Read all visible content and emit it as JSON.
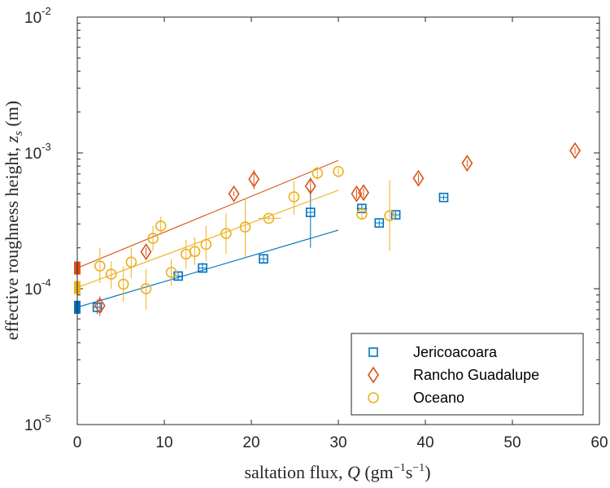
{
  "chart_data": {
    "type": "scatter",
    "title": "",
    "xlabel": {
      "prefix": "saltation flux, ",
      "var": "Q",
      "units_open": " (gm",
      "exp1": "−1",
      "units_mid": "s",
      "exp2": "−1",
      "units_close": ")"
    },
    "ylabel": {
      "prefix": "effective roughness height, ",
      "var": "z",
      "sub": "s",
      "suffix": " (m)"
    },
    "x_scale": "linear",
    "y_scale": "log",
    "xlim": [
      0,
      60
    ],
    "ylim": [
      1e-05,
      0.01
    ],
    "x_ticks": [
      0,
      10,
      20,
      30,
      40,
      50,
      60
    ],
    "x_tick_labels": [
      "0",
      "10",
      "20",
      "30",
      "40",
      "50",
      "60"
    ],
    "y_ticks": [
      {
        "value": 1e-05,
        "base": "10",
        "exp": "-5"
      },
      {
        "value": 0.0001,
        "base": "10",
        "exp": "-4"
      },
      {
        "value": 0.001,
        "base": "10",
        "exp": "-3"
      },
      {
        "value": 0.01,
        "base": "10",
        "exp": "-2"
      }
    ],
    "grid": false,
    "legend_position": "bottom-right",
    "series": [
      {
        "name": "Jericoacoara",
        "marker": "square",
        "color": "#0072BD",
        "intercept": 7.3e-05,
        "fit_x": [
          0,
          30
        ],
        "fit_y": [
          7.3e-05,
          0.00027
        ],
        "points": [
          {
            "x": 2.3,
            "y": 7.3e-05,
            "ylo": 6.5e-05,
            "yhi": 8.3e-05,
            "xlo": 1.8,
            "xhi": 2.8
          },
          {
            "x": 11.6,
            "y": 0.000124,
            "ylo": 0.000117,
            "yhi": 0.000131,
            "xlo": 11.1,
            "xhi": 12.1
          },
          {
            "x": 14.4,
            "y": 0.000142,
            "ylo": 0.000132,
            "yhi": 0.000155,
            "xlo": 13.9,
            "xhi": 14.9
          },
          {
            "x": 21.4,
            "y": 0.000166,
            "ylo": 0.000155,
            "yhi": 0.000178,
            "xlo": 20.9,
            "xhi": 21.9
          },
          {
            "x": 26.8,
            "y": 0.000365,
            "ylo": 0.0002,
            "yhi": 0.00055,
            "xlo": 26.3,
            "xhi": 27.3
          },
          {
            "x": 32.7,
            "y": 0.00039,
            "ylo": 0.00036,
            "yhi": 0.00042,
            "xlo": 32.1,
            "xhi": 33.3
          },
          {
            "x": 34.7,
            "y": 0.000305,
            "ylo": 0.00029,
            "yhi": 0.00032,
            "xlo": 34.2,
            "xhi": 35.2
          },
          {
            "x": 36.6,
            "y": 0.00035,
            "ylo": 0.00033,
            "yhi": 0.00037,
            "xlo": 36.1,
            "xhi": 37.1
          },
          {
            "x": 42.1,
            "y": 0.00047,
            "ylo": 0.00045,
            "yhi": 0.00049,
            "xlo": 41.6,
            "xhi": 42.6
          }
        ]
      },
      {
        "name": "Rancho Guadalupe",
        "marker": "diamond",
        "color": "#D95319",
        "intercept": 0.000142,
        "fit_x": [
          0,
          30
        ],
        "fit_y": [
          0.000142,
          0.00088
        ],
        "points": [
          {
            "x": 2.6,
            "y": 7.5e-05,
            "ylo": 6.3e-05,
            "yhi": 8.8e-05
          },
          {
            "x": 7.9,
            "y": 0.000187,
            "ylo": 0.000175,
            "yhi": 0.0002
          },
          {
            "x": 18.0,
            "y": 0.0005,
            "ylo": 0.00048,
            "yhi": 0.00052
          },
          {
            "x": 20.3,
            "y": 0.00064,
            "ylo": 0.00054,
            "yhi": 0.00075
          },
          {
            "x": 26.8,
            "y": 0.00057,
            "ylo": 0.00048,
            "yhi": 0.00066
          },
          {
            "x": 32.1,
            "y": 0.0005,
            "ylo": 0.00046,
            "yhi": 0.00054
          },
          {
            "x": 32.9,
            "y": 0.00051,
            "ylo": 0.00047,
            "yhi": 0.00055
          },
          {
            "x": 39.2,
            "y": 0.00065,
            "ylo": 0.0006,
            "yhi": 0.0007
          },
          {
            "x": 44.8,
            "y": 0.00084,
            "ylo": 0.00079,
            "yhi": 0.00089
          },
          {
            "x": 57.2,
            "y": 0.00104,
            "ylo": 0.00098,
            "yhi": 0.0011
          }
        ]
      },
      {
        "name": "Oceano",
        "marker": "circle",
        "color": "#EDB120",
        "intercept": 0.000102,
        "fit_x": [
          0,
          30
        ],
        "fit_y": [
          0.000102,
          0.00053
        ],
        "points": [
          {
            "x": 2.6,
            "y": 0.000147,
            "ylo": 0.00011,
            "yhi": 0.0002
          },
          {
            "x": 3.9,
            "y": 0.000128,
            "ylo": 0.0001,
            "yhi": 0.00016
          },
          {
            "x": 5.3,
            "y": 0.000108,
            "ylo": 8e-05,
            "yhi": 0.000145
          },
          {
            "x": 6.2,
            "y": 0.000157,
            "ylo": 0.00012,
            "yhi": 0.0002
          },
          {
            "x": 7.9,
            "y": 0.0001,
            "ylo": 7e-05,
            "yhi": 0.00014
          },
          {
            "x": 8.7,
            "y": 0.000235,
            "ylo": 0.00019,
            "yhi": 0.00029
          },
          {
            "x": 9.6,
            "y": 0.00029,
            "ylo": 0.00025,
            "yhi": 0.00034
          },
          {
            "x": 10.8,
            "y": 0.000132,
            "ylo": 0.000105,
            "yhi": 0.000165
          },
          {
            "x": 12.5,
            "y": 0.00018,
            "ylo": 0.00014,
            "yhi": 0.00023
          },
          {
            "x": 13.5,
            "y": 0.000188,
            "ylo": 0.00015,
            "yhi": 0.00024
          },
          {
            "x": 14.8,
            "y": 0.000212,
            "ylo": 0.00016,
            "yhi": 0.00029
          },
          {
            "x": 17.1,
            "y": 0.000255,
            "ylo": 0.00018,
            "yhi": 0.00036
          },
          {
            "x": 19.3,
            "y": 0.000285,
            "ylo": 0.00017,
            "yhi": 0.00046
          },
          {
            "x": 22.0,
            "y": 0.00033,
            "ylo": 0.000315,
            "yhi": 0.000345,
            "xlo": 20.8,
            "xhi": 23.4
          },
          {
            "x": 24.9,
            "y": 0.000475,
            "ylo": 0.00035,
            "yhi": 0.00062
          },
          {
            "x": 27.6,
            "y": 0.00071,
            "ylo": 0.00063,
            "yhi": 0.00079
          },
          {
            "x": 30.0,
            "y": 0.00073,
            "ylo": 0.00069,
            "yhi": 0.00077
          },
          {
            "x": 32.7,
            "y": 0.000355,
            "ylo": 0.00032,
            "yhi": 0.00039
          },
          {
            "x": 35.9,
            "y": 0.000345,
            "ylo": 0.00019,
            "yhi": 0.00063
          }
        ]
      }
    ]
  }
}
